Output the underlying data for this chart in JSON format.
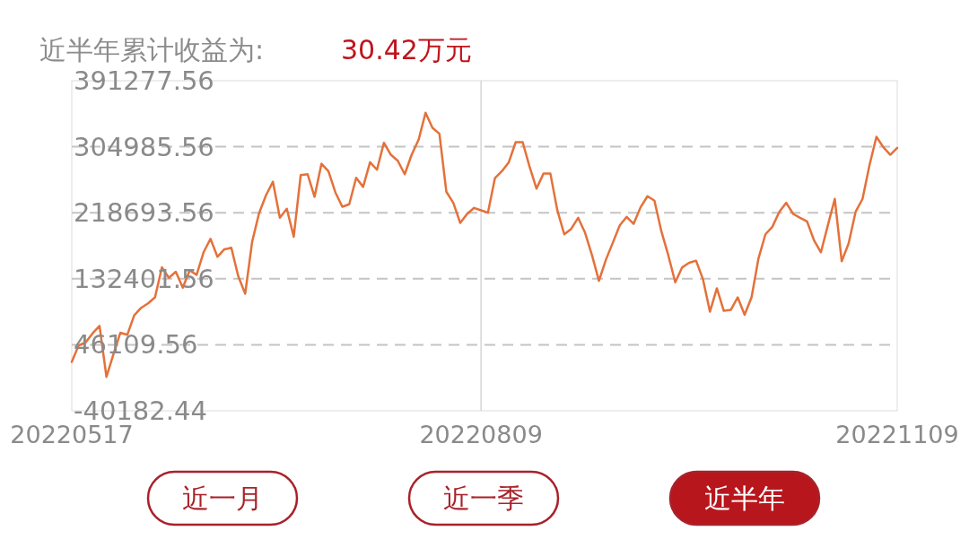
{
  "chart_data": {
    "type": "line",
    "title": "近半年累计收益为:",
    "annotations": [
      "30.42万元",
      "近一月",
      "近一季",
      "近半年"
    ],
    "categories": [
      "20220517",
      null,
      null,
      null,
      null,
      null,
      null,
      null,
      null,
      null,
      null,
      null,
      null,
      null,
      null,
      null,
      null,
      null,
      null,
      null,
      null,
      null,
      null,
      null,
      null,
      null,
      null,
      null,
      null,
      null,
      null,
      null,
      null,
      null,
      null,
      null,
      null,
      null,
      null,
      null,
      null,
      null,
      null,
      null,
      null,
      null,
      null,
      null,
      null,
      null,
      null,
      null,
      null,
      null,
      null,
      null,
      null,
      null,
      null,
      "20220809",
      null,
      null,
      null,
      null,
      null,
      null,
      null,
      null,
      null,
      null,
      null,
      null,
      null,
      null,
      null,
      null,
      null,
      null,
      null,
      null,
      null,
      null,
      null,
      null,
      null,
      null,
      null,
      null,
      null,
      null,
      null,
      null,
      null,
      null,
      null,
      null,
      null,
      null,
      null,
      null,
      null,
      null,
      null,
      null,
      null,
      null,
      null,
      null,
      null,
      null,
      null,
      null,
      null,
      null,
      null,
      null,
      null,
      null,
      null,
      "20221109"
    ],
    "series": [
      {
        "color": "#e4713a",
        "values": [
          23700,
          45300,
          49200,
          61000,
          70800,
          4100,
          33600,
          61800,
          59100,
          84600,
          94400,
          100300,
          108100,
          147300,
          133600,
          141500,
          120700,
          143400,
          137500,
          167000,
          184600,
          161100,
          170900,
          172900,
          135600,
          112800,
          180700,
          218000,
          241500,
          259200,
          212100,
          223900,
          187400,
          267800,
          269000,
          239600,
          282700,
          272900,
          245400,
          226600,
          229800,
          264300,
          252500,
          284700,
          274900,
          310200,
          294500,
          286700,
          269000,
          294500,
          314100,
          349400,
          329800,
          322000,
          246200,
          231700,
          205400,
          217200,
          225000,
          221900,
          218800,
          263900,
          272900,
          284700,
          311000,
          311000,
          278800,
          250200,
          269800,
          269800,
          221900,
          190500,
          197600,
          212100,
          192500,
          163000,
          129700,
          157200,
          179500,
          202300,
          213300,
          204200,
          225800,
          240300,
          234500,
          194400,
          163000,
          127700,
          147300,
          153200,
          156000,
          131700,
          89300,
          119900,
          90500,
          91600,
          108100,
          85300,
          108100,
          159100,
          190500,
          200300,
          219900,
          231700,
          217200,
          212100,
          207400,
          182700,
          167000,
          202300,
          236800,
          155200,
          178700,
          219900,
          236800,
          280800,
          318000,
          304300,
          294500,
          303500
        ]
      }
    ],
    "ylim": [
      -40182.44,
      391277.56
    ],
    "yticks": [
      -40182.44,
      46109.56,
      132401.56,
      218693.56,
      304985.56,
      391277.56
    ],
    "grid": "y",
    "ref_lines": [
      {
        "axis": "x",
        "value": "20220809",
        "color": "#d6d6d6"
      }
    ]
  }
}
